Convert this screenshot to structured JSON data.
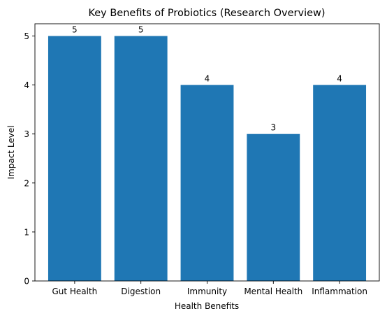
{
  "chart_data": {
    "type": "bar",
    "title": "Key Benefits of Probiotics (Research Overview)",
    "xlabel": "Health Benefits",
    "ylabel": "Impact Level",
    "categories": [
      "Gut Health",
      "Digestion",
      "Immunity",
      "Mental Health",
      "Inflammation"
    ],
    "values": [
      5,
      5,
      4,
      3,
      4
    ],
    "data_labels": [
      "5",
      "5",
      "4",
      "3",
      "4"
    ],
    "ylim": [
      0,
      5.25
    ],
    "yticks": [
      0,
      1,
      2,
      3,
      4,
      5
    ],
    "grid": false,
    "legend": "none",
    "bar_color": "#1f77b4"
  }
}
